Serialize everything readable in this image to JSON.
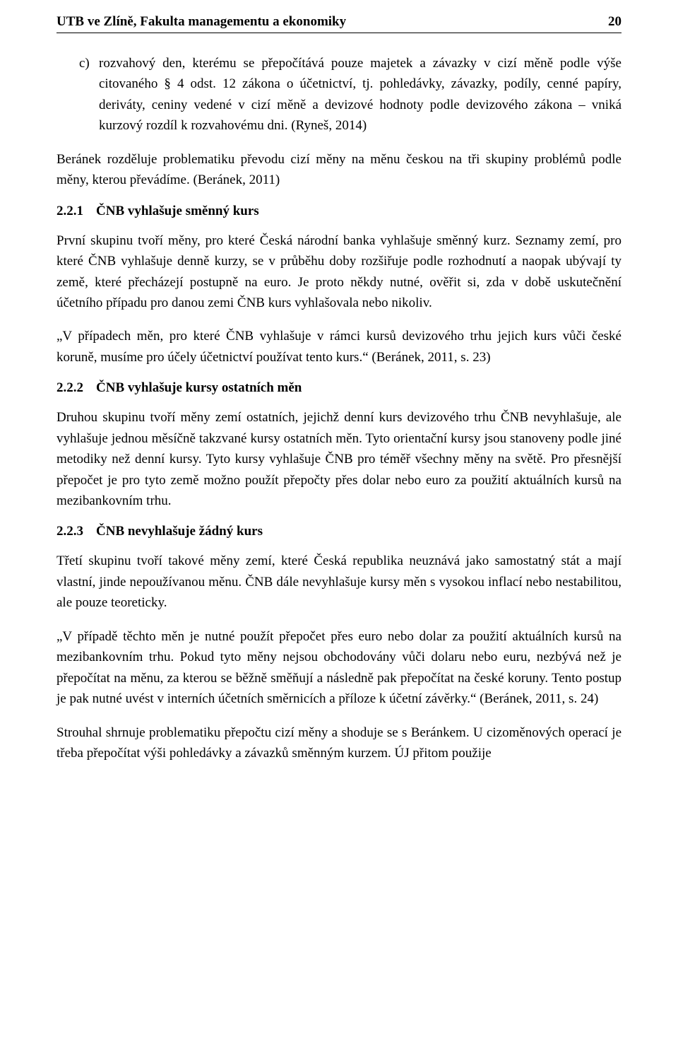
{
  "header": {
    "title": "UTB ve Zlíně, Fakulta managementu a ekonomiky",
    "page": "20"
  },
  "list_c": {
    "marker": "c)",
    "text": "rozvahový den, kterému se přepočítává pouze majetek a závazky v cizí měně podle výše citovaného § 4 odst. 12 zákona o účetnictví, tj. pohledávky, závazky, podíly, cenné papíry, deriváty, ceniny vedené v cizí měně a devizové hodnoty podle devizového zákona – vniká kurzový rozdíl k rozvahovému dni. (Ryneš, 2014)"
  },
  "p_beranek_intro": "Beránek rozděluje problematiku převodu cizí měny na měnu českou na tři skupiny problémů podle měny, kterou převádíme. (Beránek, 2011)",
  "s221": {
    "num": "2.2.1",
    "title": "ČNB vyhlašuje směnný kurs",
    "p1": "První skupinu tvoří měny, pro které Česká národní banka vyhlašuje směnný kurz. Seznamy zemí, pro které ČNB vyhlašuje denně kurzy, se v průběhu doby rozšiřuje podle rozhodnutí a naopak ubývají ty země, které přecházejí postupně na euro. Je proto někdy nutné, ověřit si, zda v době uskutečnění účetního případu pro danou zemi ČNB kurs vyhlašovala nebo nikoliv.",
    "p2": "„V případech měn, pro které ČNB vyhlašuje v rámci kursů devizového trhu jejich kurs vůči české koruně, musíme pro účely účetnictví používat tento kurs.“ (Beránek, 2011, s. 23)"
  },
  "s222": {
    "num": "2.2.2",
    "title": "ČNB vyhlašuje kursy ostatních měn",
    "p1": "Druhou skupinu tvoří měny zemí ostatních, jejichž denní kurs devizového trhu ČNB nevyhlašuje, ale vyhlašuje jednou měsíčně takzvané kursy ostatních měn. Tyto orientační kursy jsou stanoveny podle jiné metodiky než denní kursy. Tyto kursy vyhlašuje ČNB pro téměř všechny měny na světě. Pro přesnější přepočet je pro tyto země možno použít přepočty přes dolar nebo euro za použití aktuálních kursů na mezibankovním trhu."
  },
  "s223": {
    "num": "2.2.3",
    "title": "ČNB nevyhlašuje žádný kurs",
    "p1": "Třetí skupinu tvoří takové měny zemí, které Česká republika neuznává jako samostatný stát a mají vlastní, jinde nepoužívanou měnu. ČNB dále nevyhlašuje kursy měn s vysokou inflací nebo nestabilitou, ale pouze teoreticky.",
    "p2": "„V případě těchto měn je nutné použít přepočet přes euro nebo dolar za použití aktuálních kursů na mezibankovním trhu. Pokud tyto měny nejsou obchodovány vůči dolaru nebo euru, nezbývá než je přepočítat na měnu, za kterou se běžně směňují a následně pak přepočítat na české koruny. Tento postup je pak nutné uvést v interních účetních směrnicích a příloze k účetní závěrky.“ (Beránek, 2011, s. 24)",
    "p3": "Strouhal shrnuje problematiku přepočtu cizí měny a shoduje se s Beránkem. U cizoměnových operací je třeba přepočítat výši pohledávky a závazků směnným kurzem. ÚJ přitom použije"
  }
}
